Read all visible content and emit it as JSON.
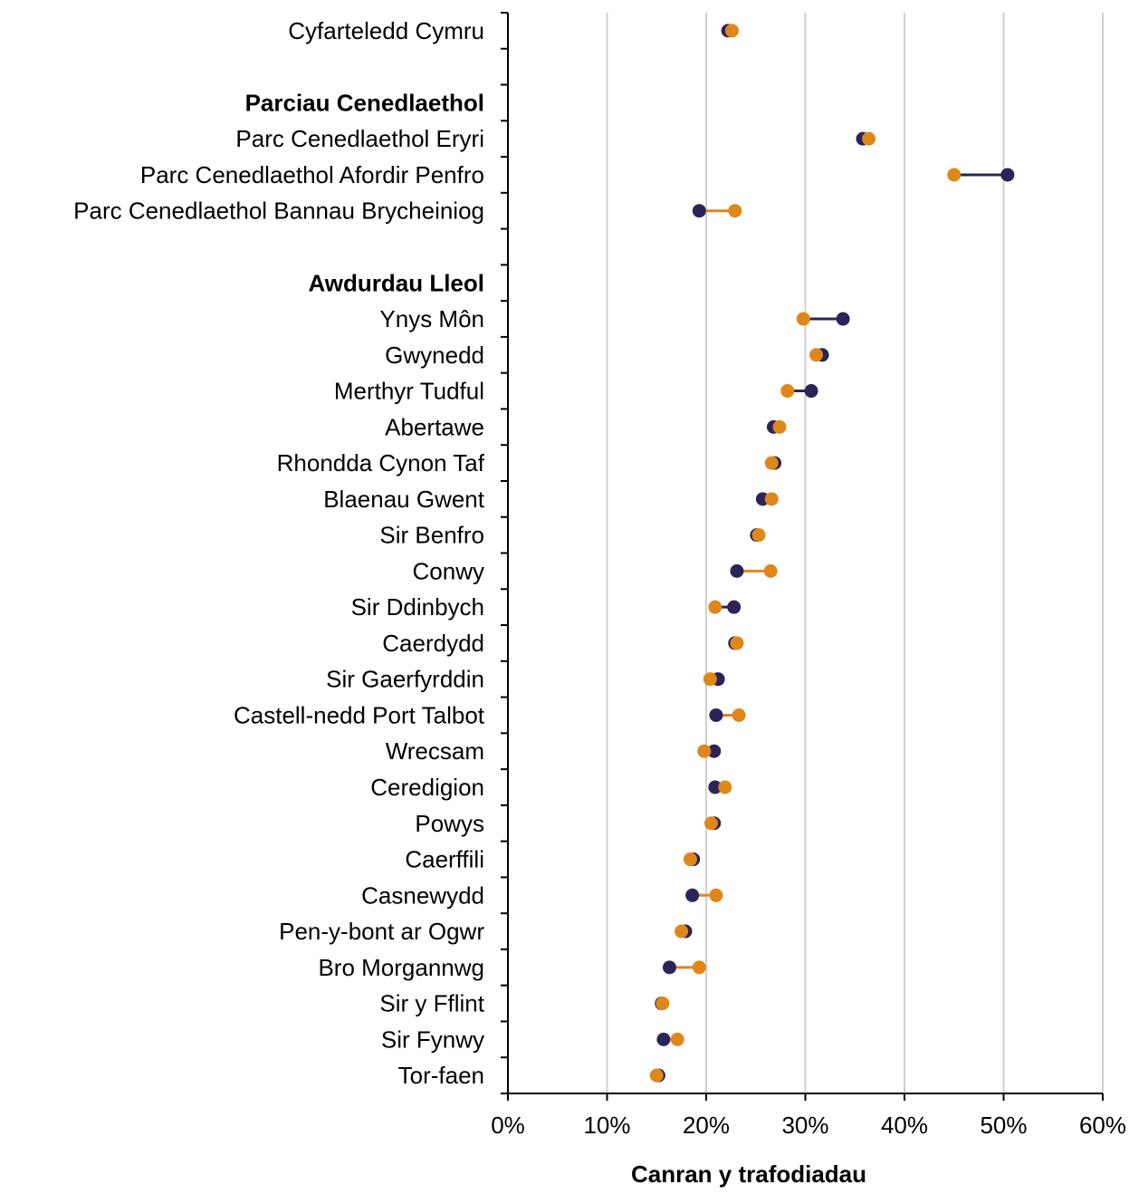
{
  "chart_data": {
    "type": "dumbbell",
    "xlabel": "Canran y trafodiadau",
    "xlim": [
      0,
      60
    ],
    "xticks": [
      0,
      10,
      20,
      30,
      40,
      50,
      60
    ],
    "tick_format": "{v}%",
    "grid": "vertical",
    "colors": {
      "series_a": "#2b2557",
      "series_b": "#e0871a",
      "axis": "#000000",
      "grid": "#d0d0d0"
    },
    "rows": [
      {
        "label": "Cyfarteledd Cymru",
        "bold": false,
        "a": 22.2,
        "b": 22.6
      },
      {
        "label": "",
        "bold": false,
        "a": null,
        "b": null
      },
      {
        "label": "Parciau Cenedlaethol",
        "bold": true,
        "a": null,
        "b": null
      },
      {
        "label": "Parc Cenedlaethol Eryri",
        "bold": false,
        "a": 35.8,
        "b": 36.4
      },
      {
        "label": "Parc Cenedlaethol Afordir Penfro",
        "bold": false,
        "a": 50.4,
        "b": 45.0
      },
      {
        "label": "Parc Cenedlaethol Bannau Brycheiniog",
        "bold": false,
        "a": 19.3,
        "b": 22.9
      },
      {
        "label": "",
        "bold": false,
        "a": null,
        "b": null
      },
      {
        "label": "Awdurdau Lleol",
        "bold": true,
        "a": null,
        "b": null
      },
      {
        "label": "Ynys Môn",
        "bold": false,
        "a": 33.8,
        "b": 29.8
      },
      {
        "label": "Gwynedd",
        "bold": false,
        "a": 31.7,
        "b": 31.1
      },
      {
        "label": "Merthyr Tudful",
        "bold": false,
        "a": 30.6,
        "b": 28.2
      },
      {
        "label": "Abertawe",
        "bold": false,
        "a": 26.8,
        "b": 27.4
      },
      {
        "label": "Rhondda Cynon Taf",
        "bold": false,
        "a": 26.9,
        "b": 26.6
      },
      {
        "label": "Blaenau Gwent",
        "bold": false,
        "a": 25.7,
        "b": 26.6
      },
      {
        "label": "Sir Benfro",
        "bold": false,
        "a": 25.1,
        "b": 25.3
      },
      {
        "label": "Conwy",
        "bold": false,
        "a": 23.1,
        "b": 26.5
      },
      {
        "label": "Sir Ddinbych",
        "bold": false,
        "a": 22.8,
        "b": 20.9
      },
      {
        "label": "Caerdydd",
        "bold": false,
        "a": 22.9,
        "b": 23.1
      },
      {
        "label": "Sir Gaerfyrddin",
        "bold": false,
        "a": 21.2,
        "b": 20.4
      },
      {
        "label": "Castell-nedd Port Talbot",
        "bold": false,
        "a": 21.0,
        "b": 23.3
      },
      {
        "label": "Wrecsam",
        "bold": false,
        "a": 20.8,
        "b": 19.8
      },
      {
        "label": "Ceredigion",
        "bold": false,
        "a": 20.9,
        "b": 21.9
      },
      {
        "label": "Powys",
        "bold": false,
        "a": 20.8,
        "b": 20.5
      },
      {
        "label": "Caerffili",
        "bold": false,
        "a": 18.7,
        "b": 18.4
      },
      {
        "label": "Casnewydd",
        "bold": false,
        "a": 18.6,
        "b": 21.0
      },
      {
        "label": "Pen-y-bont ar Ogwr",
        "bold": false,
        "a": 17.9,
        "b": 17.5
      },
      {
        "label": "Bro Morgannwg",
        "bold": false,
        "a": 16.3,
        "b": 19.3
      },
      {
        "label": "Sir y Fflint",
        "bold": false,
        "a": 15.5,
        "b": 15.6
      },
      {
        "label": "Sir Fynwy",
        "bold": false,
        "a": 15.7,
        "b": 17.1
      },
      {
        "label": "Tor-faen",
        "bold": false,
        "a": 15.2,
        "b": 15.0
      }
    ]
  }
}
